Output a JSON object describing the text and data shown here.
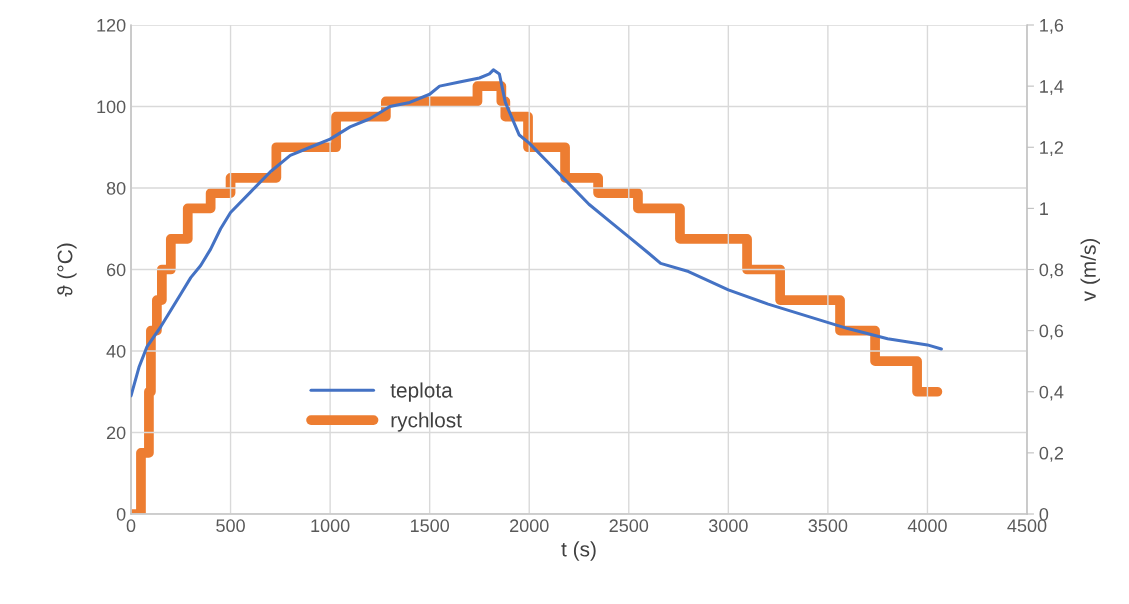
{
  "chart_data": {
    "type": "line",
    "xlabel": "t (s)",
    "ylabel": "ϑ (°C)",
    "y2label": "v (m/s)",
    "xlim": [
      0,
      4500
    ],
    "xticks": [
      0,
      500,
      1000,
      1500,
      2000,
      2500,
      3000,
      3500,
      4000,
      4500
    ],
    "ylim": [
      0,
      120
    ],
    "yticks": [
      0,
      20,
      40,
      60,
      80,
      100,
      120
    ],
    "y2lim": [
      0,
      1.6
    ],
    "y2ticks": [
      0,
      {
        "value": 0.2,
        "label": "0,2"
      },
      {
        "value": 0.4,
        "label": "0,4"
      },
      {
        "value": 0.6,
        "label": "0,6"
      },
      {
        "value": 0.8,
        "label": "0,8"
      },
      1,
      {
        "value": 1.2,
        "label": "1,2"
      },
      {
        "value": 1.4,
        "label": "1,4"
      },
      {
        "value": 1.6,
        "label": "1,6"
      }
    ],
    "grid": true,
    "legend": "lower left",
    "marker": "none",
    "line_style": "solid",
    "series": [
      {
        "name": "teplota",
        "color": "#4472c4",
        "x": [
          0,
          40,
          80,
          150,
          200,
          250,
          300,
          350,
          400,
          450,
          500,
          600,
          700,
          800,
          900,
          1000,
          1100,
          1200,
          1300,
          1400,
          1500,
          1550,
          1650,
          1750,
          1800,
          1820,
          1850,
          1880,
          1950,
          2000,
          2100,
          2200,
          2300,
          2400,
          2500,
          2600,
          2660,
          2800,
          3000,
          3200,
          3400,
          3600,
          3800,
          4000,
          4070
        ],
        "values": [
          29,
          36,
          41,
          46,
          50,
          54,
          58,
          61,
          65,
          70,
          74,
          79,
          84,
          88,
          90,
          92,
          95,
          97,
          100,
          101,
          103,
          105,
          106,
          107,
          108,
          109,
          108,
          101,
          93,
          91,
          86,
          81,
          76,
          72,
          68,
          64,
          61.5,
          59.5,
          55,
          51.5,
          48.5,
          45.5,
          43,
          41.5,
          40.5
        ]
      },
      {
        "name": "rychlost",
        "type": "step",
        "axis": "y2",
        "color": "#ed7d31",
        "x": [
          0,
          50,
          90,
          100,
          130,
          155,
          200,
          285,
          400,
          500,
          730,
          1030,
          1280,
          1740,
          1860,
          1880,
          1994,
          2180,
          2346,
          2546,
          2757,
          3094,
          3260,
          3561,
          3737,
          3948,
          4050
        ],
        "values": [
          0,
          0.2,
          0.4,
          0.6,
          0.7,
          0.8,
          0.9,
          1.0,
          1.05,
          1.1,
          1.2,
          1.3,
          1.35,
          1.4,
          1.35,
          1.3,
          1.2,
          1.1,
          1.05,
          1.0,
          0.9,
          0.8,
          0.7,
          0.6,
          0.5,
          0.4,
          0.4
        ]
      }
    ]
  }
}
